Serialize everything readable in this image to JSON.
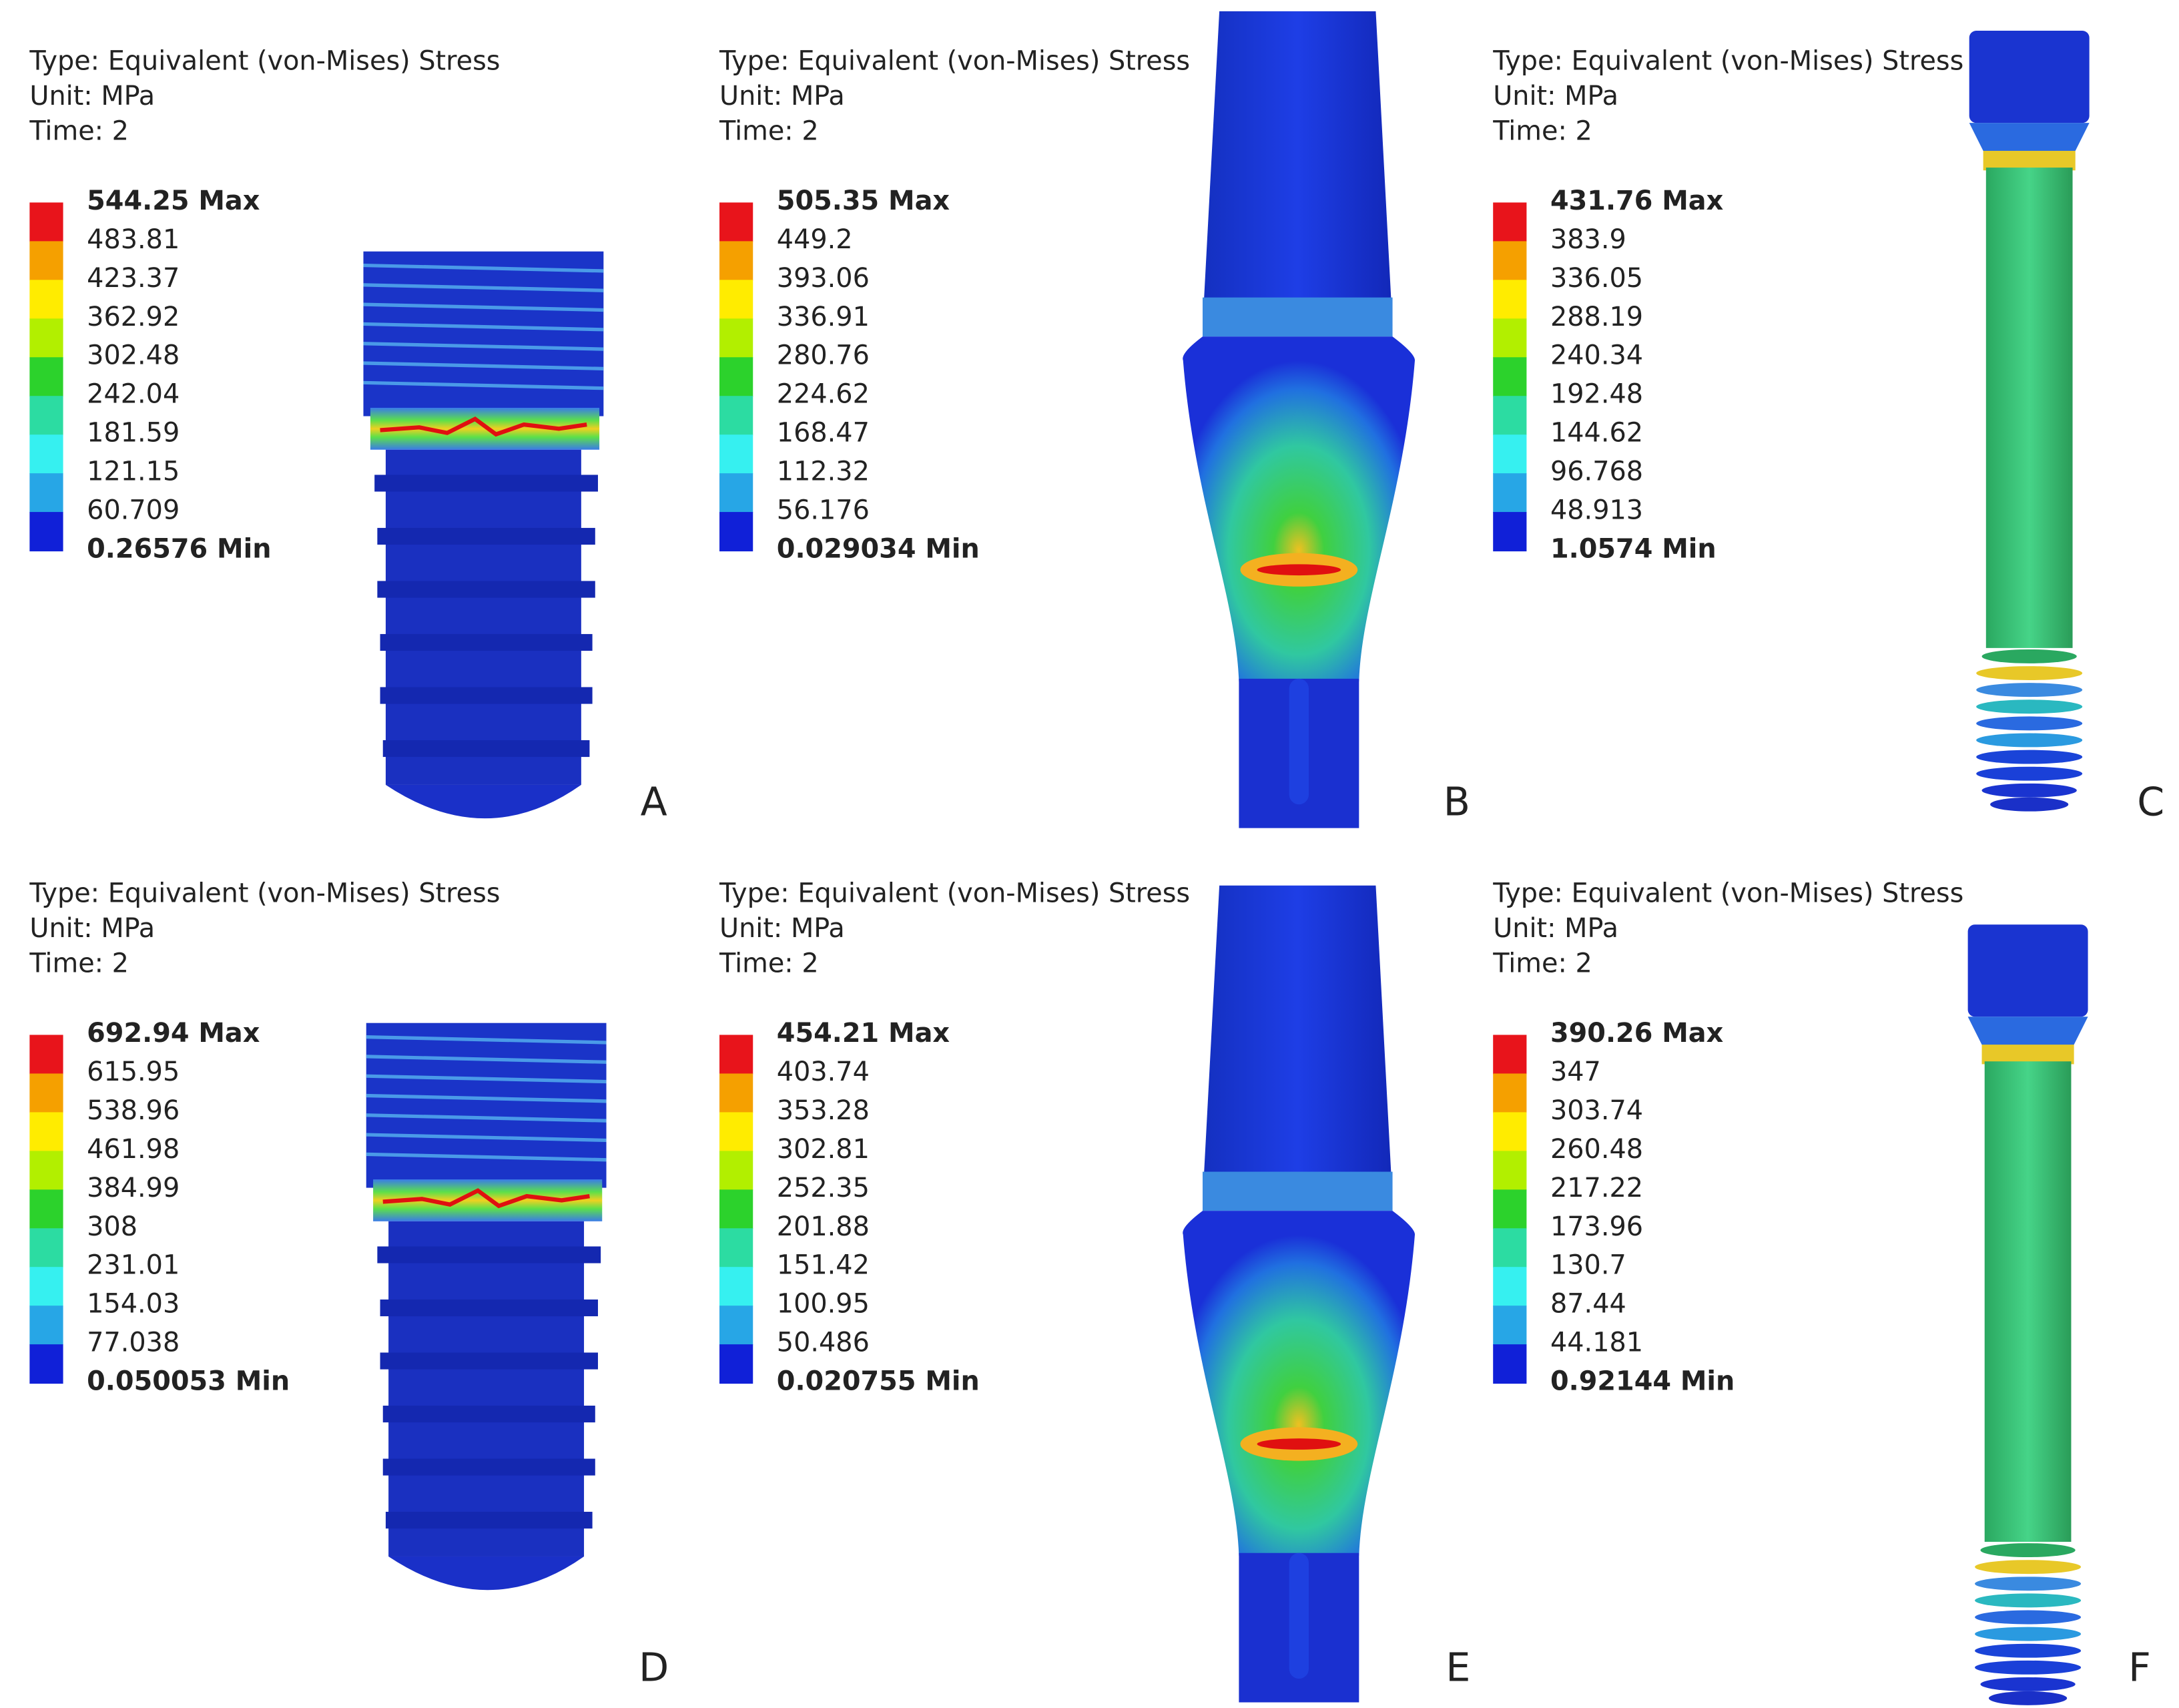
{
  "panels": [
    {
      "type_line": "Type: Equivalent (von-Mises) Stress",
      "unit_line": "Unit: MPa",
      "time_line": "Time: 2",
      "legend": [
        "544.25 Max",
        "483.81",
        "423.37",
        "362.92",
        "302.48",
        "242.04",
        "181.59",
        "121.15",
        "60.709",
        "0.26576 Min"
      ],
      "label": "A"
    },
    {
      "type_line": "Type: Equivalent (von-Mises) Stress",
      "unit_line": "Unit: MPa",
      "time_line": "Time: 2",
      "legend": [
        "505.35 Max",
        "449.2",
        "393.06",
        "336.91",
        "280.76",
        "224.62",
        "168.47",
        "112.32",
        "56.176",
        "0.029034 Min"
      ],
      "label": "B"
    },
    {
      "type_line": "Type: Equivalent (von-Mises) Stress",
      "unit_line": "Unit: MPa",
      "time_line": "Time: 2",
      "legend": [
        "431.76 Max",
        "383.9",
        "336.05",
        "288.19",
        "240.34",
        "192.48",
        "144.62",
        "96.768",
        "48.913",
        "1.0574 Min"
      ],
      "label": "C"
    },
    {
      "type_line": "Type: Equivalent (von-Mises) Stress",
      "unit_line": "Unit: MPa",
      "time_line": "Time: 2",
      "legend": [
        "692.94 Max",
        "615.95",
        "538.96",
        "461.98",
        "384.99",
        "308",
        "231.01",
        "154.03",
        "77.038",
        "0.050053 Min"
      ],
      "label": "D"
    },
    {
      "type_line": "Type: Equivalent (von-Mises) Stress",
      "unit_line": "Unit: MPa",
      "time_line": "Time: 2",
      "legend": [
        "454.21 Max",
        "403.74",
        "353.28",
        "302.81",
        "252.35",
        "201.88",
        "151.42",
        "100.95",
        "50.486",
        "0.020755 Min"
      ],
      "label": "E"
    },
    {
      "type_line": "Type: Equivalent (von-Mises) Stress",
      "unit_line": "Unit: MPa",
      "time_line": "Time: 2",
      "legend": [
        "390.26 Max",
        "347",
        "303.74",
        "260.48",
        "217.22",
        "173.96",
        "130.7",
        "87.44",
        "44.181",
        "0.92144 Min"
      ],
      "label": "F"
    }
  ]
}
